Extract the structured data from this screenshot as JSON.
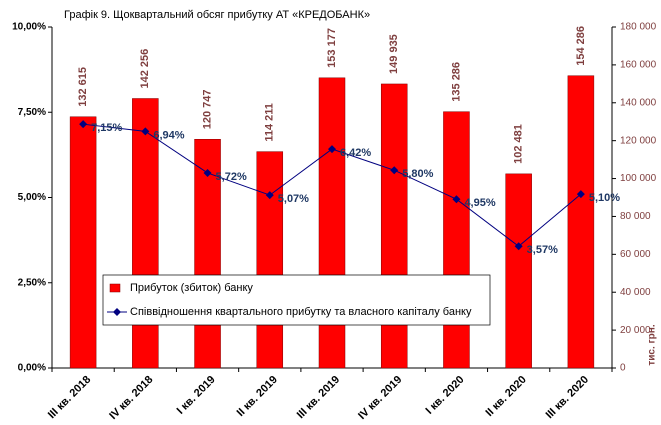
{
  "chart_data": {
    "type": "bar_line",
    "title": "Графік 9. Щоквартальний обсяг прибутку АТ «КРЕДОБАНК»",
    "categories": [
      "III кв. 2018",
      "IV кв. 2018",
      "I кв. 2019",
      "II кв. 2019",
      "III кв. 2019",
      "IV кв. 2019",
      "I кв. 2020",
      "II кв. 2020",
      "III кв. 2020"
    ],
    "series": [
      {
        "name": "Прибуток (збиток)  банку",
        "type": "bar",
        "axis": "y2",
        "color": "#ff0000",
        "values": [
          132615,
          142256,
          120747,
          114211,
          153177,
          149935,
          135286,
          102481,
          154286
        ],
        "value_labels": [
          "132 615",
          "142 256",
          "120 747",
          "114 211",
          "153 177",
          "149 935",
          "135 286",
          "102 481",
          "154 286"
        ]
      },
      {
        "name": "Співвідношення квартального прибутку та власного капіталу банку",
        "type": "line",
        "axis": "y",
        "color": "#000080",
        "values": [
          7.15,
          6.94,
          5.72,
          5.07,
          6.42,
          5.8,
          4.95,
          3.57,
          5.1
        ],
        "value_labels": [
          "7,15%",
          "6,94%",
          "5,72%",
          "5,07%",
          "6,42%",
          "5,80%",
          "4,95%",
          "3,57%",
          "5,10%"
        ]
      }
    ],
    "ylim": [
      0,
      10
    ],
    "yticks": [
      {
        "value": 0,
        "label": "0,00%"
      },
      {
        "value": 2.5,
        "label": "2,50%"
      },
      {
        "value": 5,
        "label": "5,00%"
      },
      {
        "value": 7.5,
        "label": "7,50%"
      },
      {
        "value": 10,
        "label": "10,00%"
      }
    ],
    "y2lim": [
      0,
      180000
    ],
    "y2ticks": [
      0,
      {
        "value": 20000,
        "label": "20 000"
      },
      {
        "value": 40000,
        "label": "40 000"
      },
      {
        "value": 60000,
        "label": "60 000"
      },
      {
        "value": 80000,
        "label": "80 000"
      },
      {
        "value": 100000,
        "label": "100 000"
      },
      {
        "value": 120000,
        "label": "120 000"
      },
      {
        "value": 140000,
        "label": "140 000"
      },
      {
        "value": 160000,
        "label": "160 000"
      },
      {
        "value": 180000,
        "label": "180 000"
      }
    ],
    "y2label": "тис. грн.",
    "grid": false
  }
}
